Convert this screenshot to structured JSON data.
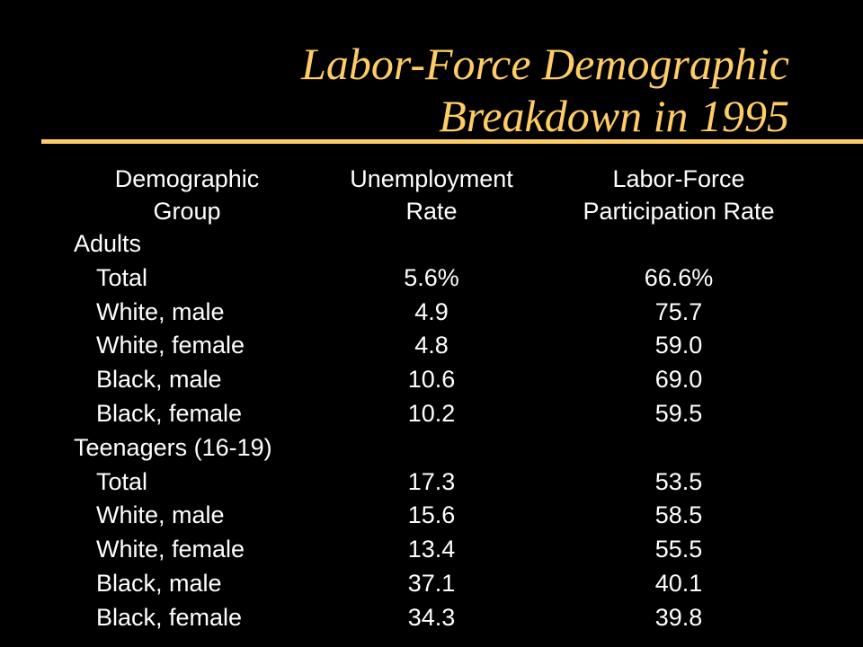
{
  "slide": {
    "title_line1": "Labor-Force Demographic",
    "title_line2": "Breakdown in 1995",
    "accent_color": "#ffcc66",
    "background_color": "#000000",
    "text_color": "#ffffff"
  },
  "table": {
    "headers": {
      "group": [
        "Demographic",
        "Group"
      ],
      "unemployment": [
        "Unemployment",
        "Rate"
      ],
      "participation": [
        "Labor-Force",
        "Participation Rate"
      ]
    },
    "rows": [
      {
        "type": "section",
        "label": "Adults",
        "unemployment": "",
        "participation": ""
      },
      {
        "type": "item",
        "label": "Total",
        "unemployment": "5.6%",
        "participation": "66.6%"
      },
      {
        "type": "item",
        "label": "White, male",
        "unemployment": "4.9",
        "participation": "75.7"
      },
      {
        "type": "item",
        "label": "White, female",
        "unemployment": "4.8",
        "participation": "59.0"
      },
      {
        "type": "item",
        "label": "Black, male",
        "unemployment": "10.6",
        "participation": "69.0"
      },
      {
        "type": "item",
        "label": "Black, female",
        "unemployment": "10.2",
        "participation": "59.5"
      },
      {
        "type": "section",
        "label": "Teenagers (16-19)",
        "unemployment": "",
        "participation": ""
      },
      {
        "type": "item",
        "label": "Total",
        "unemployment": "17.3",
        "participation": "53.5"
      },
      {
        "type": "item",
        "label": "White, male",
        "unemployment": "15.6",
        "participation": "58.5"
      },
      {
        "type": "item",
        "label": "White, female",
        "unemployment": "13.4",
        "participation": "55.5"
      },
      {
        "type": "item",
        "label": "Black, male",
        "unemployment": "37.1",
        "participation": "40.1"
      },
      {
        "type": "item",
        "label": "Black, female",
        "unemployment": "34.3",
        "participation": "39.8"
      }
    ]
  }
}
